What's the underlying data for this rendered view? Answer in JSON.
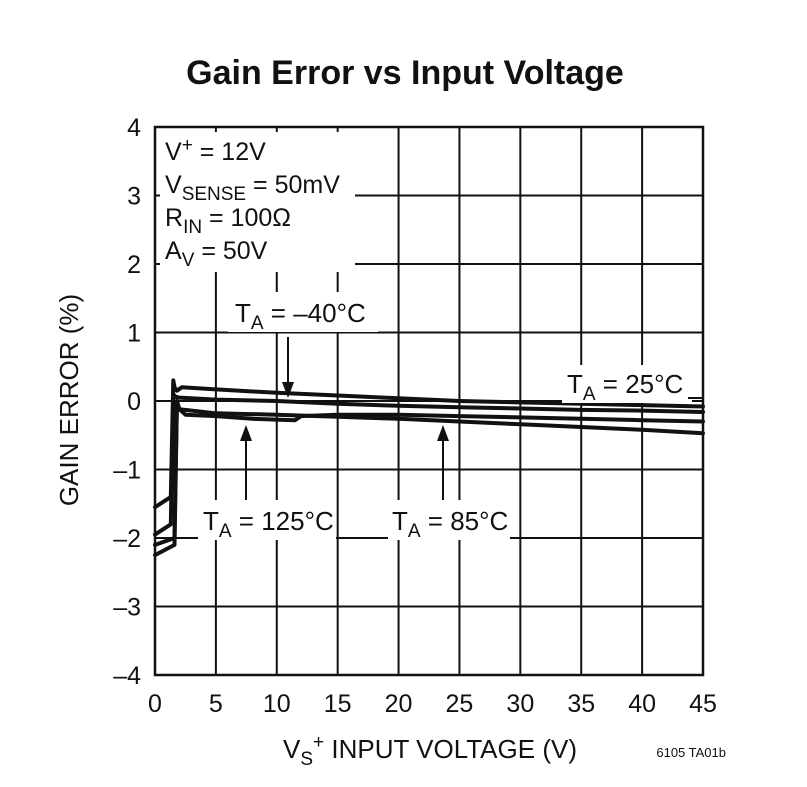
{
  "chart_data": {
    "type": "line",
    "title": "Gain Error vs Input Voltage",
    "xlabel": {
      "pre": "V",
      "sub": "S",
      "sup": "+",
      "post": " INPUT VOLTAGE (V)"
    },
    "ylabel": "GAIN ERROR (%)",
    "xlim": [
      0,
      45
    ],
    "ylim": [
      -4,
      4
    ],
    "xticks": [
      0,
      5,
      10,
      15,
      20,
      25,
      30,
      35,
      40,
      45
    ],
    "yticks": [
      4,
      3,
      2,
      1,
      0,
      -1,
      -2,
      -3,
      -4
    ],
    "ytick_labels": [
      "4",
      "3",
      "2",
      "1",
      "0",
      "–1",
      "–2",
      "–3",
      "–4"
    ],
    "grid": true,
    "conditions": [
      {
        "pre": "V",
        "sub": "",
        "sup": "+",
        "post": " = 12V"
      },
      {
        "pre": "V",
        "sub": "SENSE",
        "sup": "",
        "post": " = 50mV"
      },
      {
        "pre": "R",
        "sub": "IN",
        "sup": "",
        "post": " = 100Ω"
      },
      {
        "pre": "A",
        "sub": "V",
        "sup": "",
        "post": " = 50V"
      }
    ],
    "series": [
      {
        "name": "T_A = 25°C",
        "label": {
          "pre": "T",
          "sub": "A",
          "post": " = 25°C"
        },
        "x": [
          0,
          1.3,
          1.5,
          1.6,
          1.8,
          2.2,
          5,
          10,
          15,
          20,
          25,
          30,
          35,
          40,
          45
        ],
        "y": [
          -1.55,
          -1.4,
          0.3,
          0.2,
          0.15,
          0.2,
          0.17,
          0.12,
          0.08,
          0.04,
          0.0,
          -0.02,
          -0.04,
          -0.06,
          -0.08
        ]
      },
      {
        "name": "T_A = –40°C",
        "label": {
          "pre": "T",
          "sub": "A",
          "post": " = –40°C"
        },
        "x": [
          0,
          1.3,
          1.5,
          1.7,
          2.0,
          5,
          10,
          15,
          20,
          25,
          30,
          35,
          40,
          45
        ],
        "y": [
          -1.95,
          -1.8,
          0.1,
          0.06,
          0.05,
          0.02,
          0.0,
          -0.04,
          -0.07,
          -0.09,
          -0.11,
          -0.13,
          -0.14,
          -0.16
        ]
      },
      {
        "name": "T_A = 125°C",
        "label": {
          "pre": "T",
          "sub": "A",
          "post": " = 125°C"
        },
        "x": [
          0,
          1.6,
          1.8,
          2.0,
          2.5,
          5,
          8,
          11.5,
          12,
          15,
          20,
          25,
          30,
          35,
          40,
          45
        ],
        "y": [
          -2.1,
          -2.0,
          0.0,
          -0.12,
          -0.2,
          -0.22,
          -0.26,
          -0.28,
          -0.22,
          -0.2,
          -0.2,
          -0.22,
          -0.24,
          -0.26,
          -0.28,
          -0.3
        ]
      },
      {
        "name": "T_A = 85°C",
        "label": {
          "pre": "T",
          "sub": "A",
          "post": " = 85°C"
        },
        "x": [
          0,
          1.6,
          1.8,
          2.0,
          5,
          10,
          15,
          20,
          25,
          30,
          35,
          40,
          45
        ],
        "y": [
          -2.25,
          -2.1,
          -0.05,
          -0.12,
          -0.18,
          -0.2,
          -0.23,
          -0.26,
          -0.3,
          -0.34,
          -0.38,
          -0.42,
          -0.47
        ]
      }
    ],
    "figure_id": "6105 TA01b"
  }
}
